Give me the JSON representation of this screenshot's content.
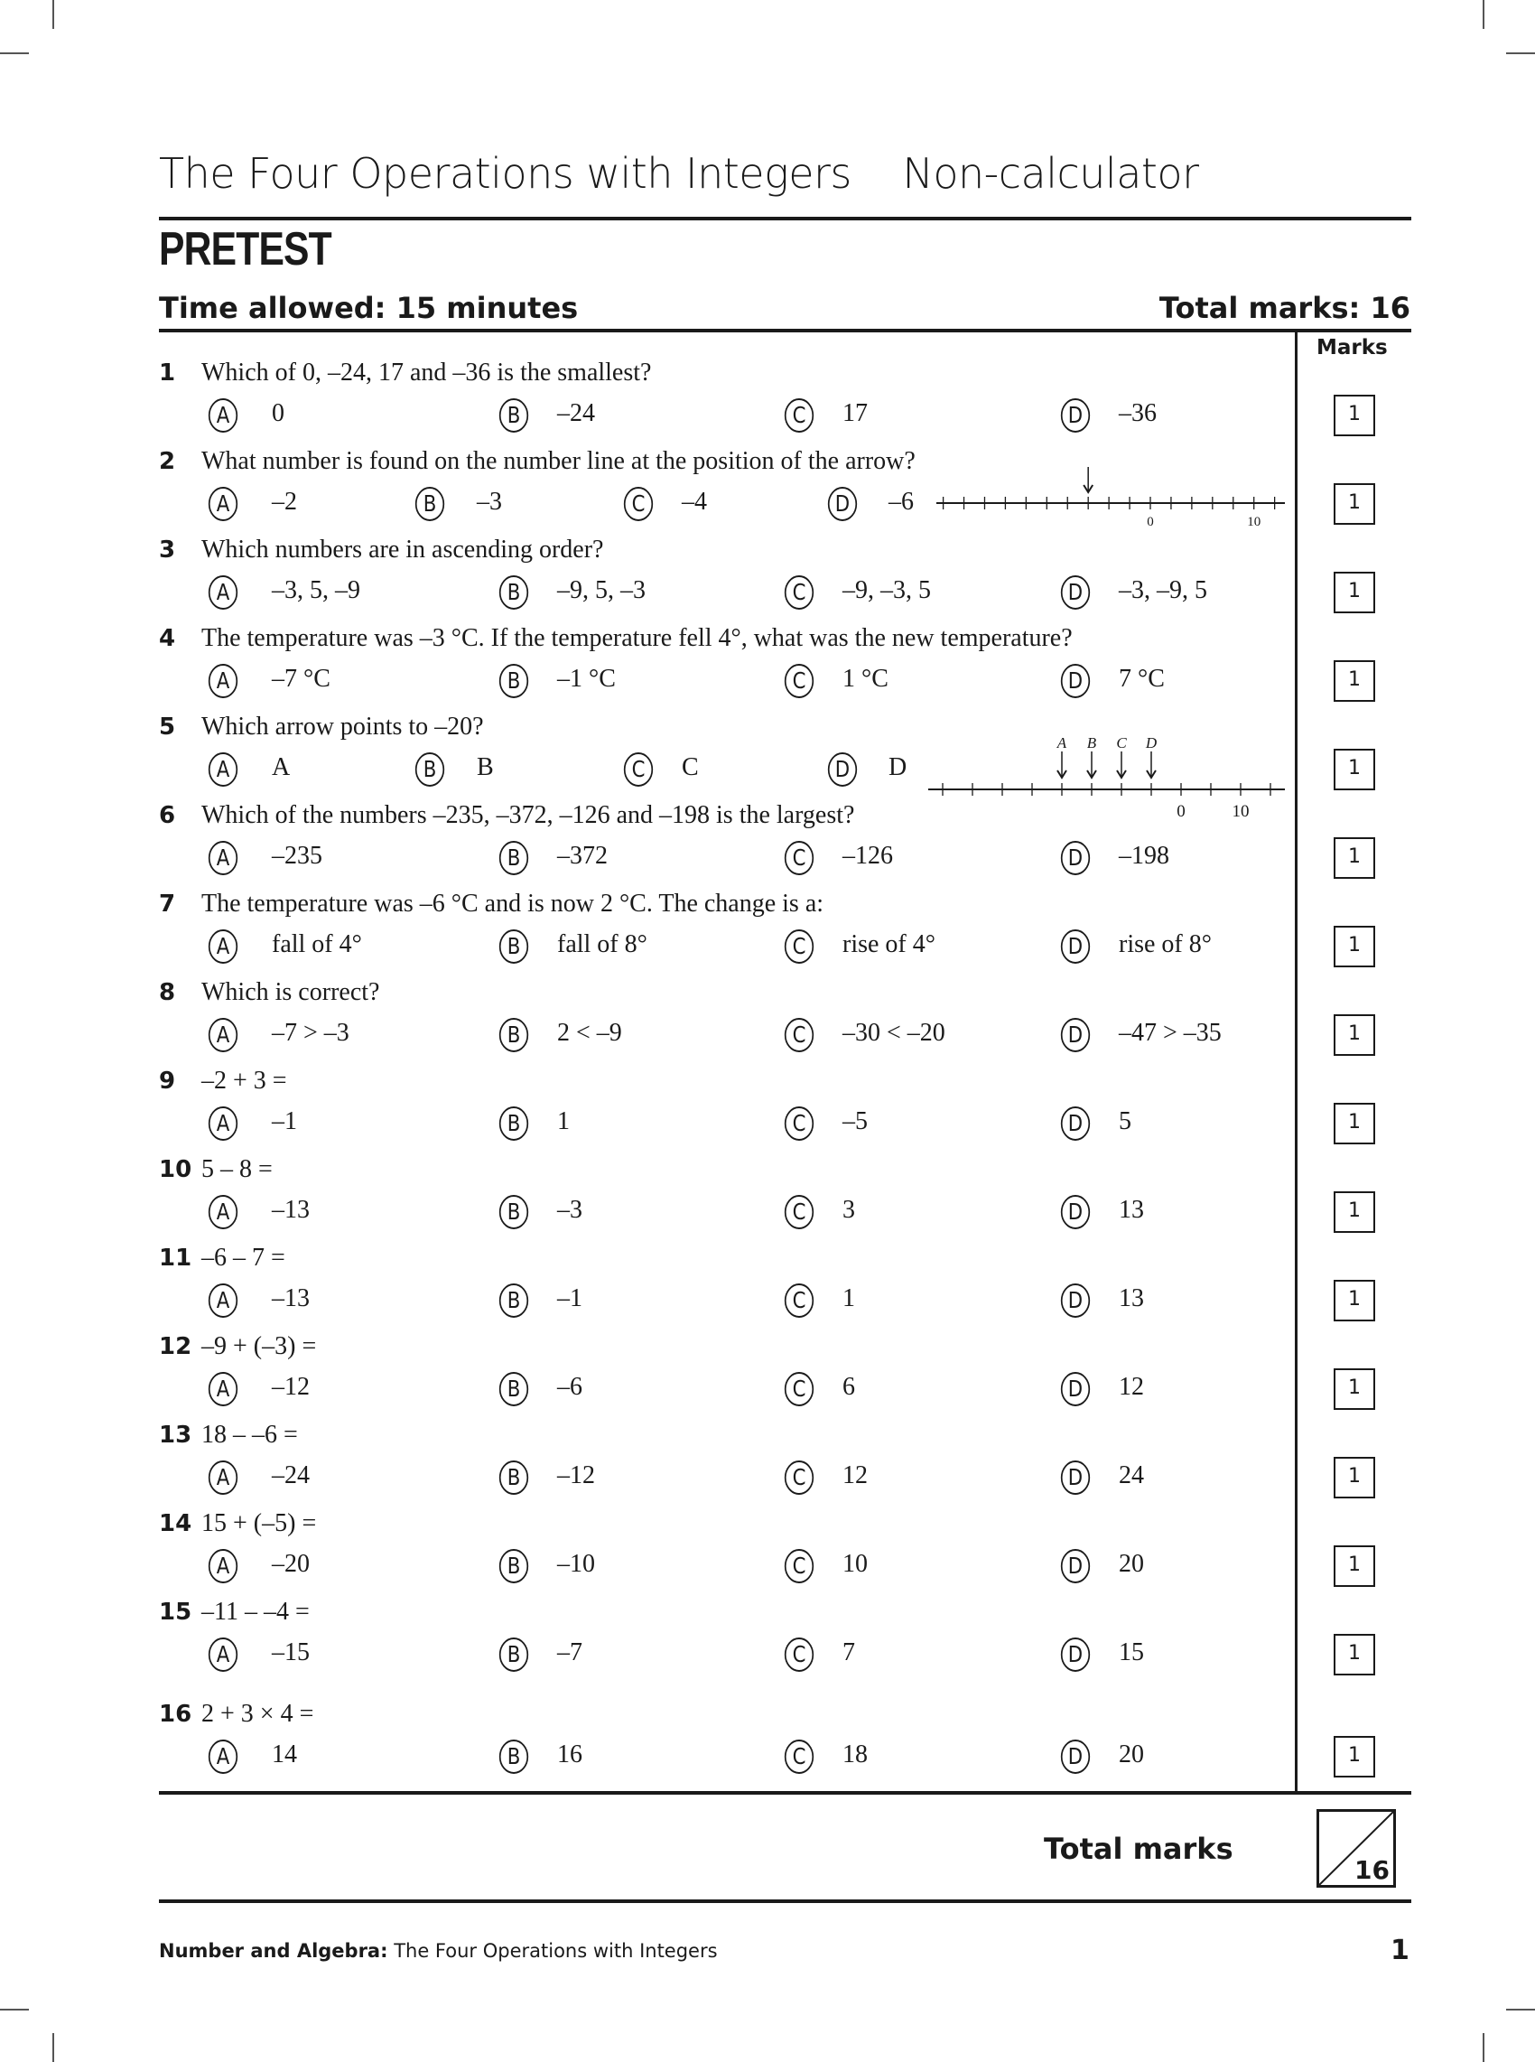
{
  "header": {
    "title": "The Four Operations with Integers",
    "subtitle": "Non-calculator",
    "heading": "PRETEST",
    "time_allowed": "Time allowed: 15 minutes",
    "total_marks": "Total marks: 16",
    "marks_column": "Marks"
  },
  "questions": [
    {
      "number": "1",
      "text": "Which of 0, –24, 17 and –36 is the smallest?",
      "options": [
        {
          "letter": "A",
          "value": "0"
        },
        {
          "letter": "B",
          "value": "–24"
        },
        {
          "letter": "C",
          "value": "17"
        },
        {
          "letter": "D",
          "value": "–36"
        }
      ],
      "mark": "1"
    },
    {
      "number": "2",
      "text": "What number is found on the number line at the position of the arrow?",
      "options": [
        {
          "letter": "A",
          "value": "–2"
        },
        {
          "letter": "B",
          "value": "–3"
        },
        {
          "letter": "C",
          "value": "–4"
        },
        {
          "letter": "D",
          "value": "–6"
        }
      ],
      "mark": "1",
      "compact": true
    },
    {
      "number": "3",
      "text": "Which numbers are in ascending order?",
      "options": [
        {
          "letter": "A",
          "value": "–3, 5, –9"
        },
        {
          "letter": "B",
          "value": "–9, 5, –3"
        },
        {
          "letter": "C",
          "value": "–9, –3, 5"
        },
        {
          "letter": "D",
          "value": "–3, –9, 5"
        }
      ],
      "mark": "1"
    },
    {
      "number": "4",
      "text": "The temperature was –3 °C. If the temperature fell 4°, what was the new temperature?",
      "options": [
        {
          "letter": "A",
          "value": "–7 °C"
        },
        {
          "letter": "B",
          "value": "–1 °C"
        },
        {
          "letter": "C",
          "value": "1 °C"
        },
        {
          "letter": "D",
          "value": "7 °C"
        }
      ],
      "mark": "1"
    },
    {
      "number": "5",
      "text": "Which arrow points to –20?",
      "options": [
        {
          "letter": "A",
          "value": "A"
        },
        {
          "letter": "B",
          "value": "B"
        },
        {
          "letter": "C",
          "value": "C"
        },
        {
          "letter": "D",
          "value": "D"
        }
      ],
      "mark": "1",
      "compact": true
    },
    {
      "number": "6",
      "text": "Which of the numbers –235, –372, –126 and –198 is the largest?",
      "options": [
        {
          "letter": "A",
          "value": "–235"
        },
        {
          "letter": "B",
          "value": "–372"
        },
        {
          "letter": "C",
          "value": "–126"
        },
        {
          "letter": "D",
          "value": "–198"
        }
      ],
      "mark": "1"
    },
    {
      "number": "7",
      "text": "The temperature was –6 °C and is now 2 °C. The change is a:",
      "options": [
        {
          "letter": "A",
          "value": "fall of 4°"
        },
        {
          "letter": "B",
          "value": "fall of 8°"
        },
        {
          "letter": "C",
          "value": "rise of 4°"
        },
        {
          "letter": "D",
          "value": "rise of 8°"
        }
      ],
      "mark": "1"
    },
    {
      "number": "8",
      "text": "Which is correct?",
      "options": [
        {
          "letter": "A",
          "value": "–7 > –3"
        },
        {
          "letter": "B",
          "value": "2 < –9"
        },
        {
          "letter": "C",
          "value": "–30 < –20"
        },
        {
          "letter": "D",
          "value": "–47 > –35"
        }
      ],
      "mark": "1"
    },
    {
      "number": "9",
      "text": "–2 + 3 =",
      "options": [
        {
          "letter": "A",
          "value": "–1"
        },
        {
          "letter": "B",
          "value": "1"
        },
        {
          "letter": "C",
          "value": "–5"
        },
        {
          "letter": "D",
          "value": "5"
        }
      ],
      "mark": "1"
    },
    {
      "number": "10",
      "text": "5 – 8 =",
      "options": [
        {
          "letter": "A",
          "value": "–13"
        },
        {
          "letter": "B",
          "value": "–3"
        },
        {
          "letter": "C",
          "value": "3"
        },
        {
          "letter": "D",
          "value": "13"
        }
      ],
      "mark": "1"
    },
    {
      "number": "11",
      "text": "–6 – 7 =",
      "options": [
        {
          "letter": "A",
          "value": "–13"
        },
        {
          "letter": "B",
          "value": "–1"
        },
        {
          "letter": "C",
          "value": "1"
        },
        {
          "letter": "D",
          "value": "13"
        }
      ],
      "mark": "1"
    },
    {
      "number": "12",
      "text": "–9 + (–3) =",
      "options": [
        {
          "letter": "A",
          "value": "–12"
        },
        {
          "letter": "B",
          "value": "–6"
        },
        {
          "letter": "C",
          "value": "6"
        },
        {
          "letter": "D",
          "value": "12"
        }
      ],
      "mark": "1"
    },
    {
      "number": "13",
      "text": "18 – –6 =",
      "options": [
        {
          "letter": "A",
          "value": "–24"
        },
        {
          "letter": "B",
          "value": "–12"
        },
        {
          "letter": "C",
          "value": "12"
        },
        {
          "letter": "D",
          "value": "24"
        }
      ],
      "mark": "1"
    },
    {
      "number": "14",
      "text": "15 + (–5) =",
      "options": [
        {
          "letter": "A",
          "value": "–20"
        },
        {
          "letter": "B",
          "value": "–10"
        },
        {
          "letter": "C",
          "value": "10"
        },
        {
          "letter": "D",
          "value": "20"
        }
      ],
      "mark": "1"
    },
    {
      "number": "15",
      "text": "–11 – –4 =",
      "options": [
        {
          "letter": "A",
          "value": "–15"
        },
        {
          "letter": "B",
          "value": "–7"
        },
        {
          "letter": "C",
          "value": "7"
        },
        {
          "letter": "D",
          "value": "15"
        }
      ],
      "mark": "1"
    },
    {
      "number": "16",
      "text": "2 + 3 × 4 =",
      "options": [
        {
          "letter": "A",
          "value": "14"
        },
        {
          "letter": "B",
          "value": "16"
        },
        {
          "letter": "C",
          "value": "18"
        },
        {
          "letter": "D",
          "value": "20"
        }
      ],
      "mark": "1"
    }
  ],
  "number_lines": {
    "q2": {
      "min": -20,
      "max": 12,
      "step": 2,
      "labels": [
        "0",
        "10"
      ],
      "label_values": [
        0,
        10
      ],
      "arrows": [
        {
          "value": -6,
          "label": ""
        }
      ]
    },
    "q5": {
      "min": -40,
      "max": 15,
      "step": 5,
      "labels": [
        "0",
        "10"
      ],
      "label_values": [
        0,
        10
      ],
      "arrows": [
        {
          "value": -20,
          "label": "A"
        },
        {
          "value": -15,
          "label": "B"
        },
        {
          "value": -10,
          "label": "C"
        },
        {
          "value": -5,
          "label": "D"
        }
      ]
    }
  },
  "summary": {
    "label": "Total marks",
    "out_of": "16"
  },
  "footer": {
    "section": "Number and Algebra:",
    "topic": "The Four Operations with Integers",
    "page": "1"
  }
}
